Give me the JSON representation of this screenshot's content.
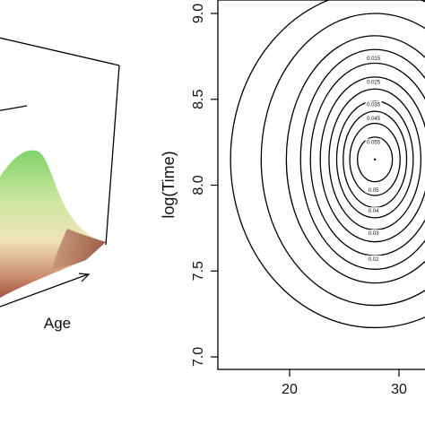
{
  "chart_data": [
    {
      "type": "surface",
      "xlabel": "Age",
      "colors": {
        "peak": "#7fd36a",
        "mid": "#e9e3a0",
        "base": "#a0523b",
        "edge": "#000000"
      }
    },
    {
      "type": "contour",
      "xlabel": "",
      "ylabel": "log(Time)",
      "xlim": [
        13,
        34
      ],
      "ylim": [
        6.88,
        9.05
      ],
      "x_ticks": [
        "20",
        "30"
      ],
      "y_ticks": [
        "7.0",
        "7.5",
        "8.0",
        "8.5",
        "9.0"
      ],
      "x_tick_values": [
        20,
        30
      ],
      "y_tick_values": [
        7.0,
        7.5,
        8.0,
        8.5,
        9.0
      ],
      "peak": {
        "x": 27.8,
        "y": 8.15
      },
      "levels": [
        {
          "label": "",
          "rx": 13.2,
          "ry": 0.98
        },
        {
          "label": "",
          "rx": 10.4,
          "ry": 0.85
        },
        {
          "label": "0.015",
          "rx": 8.1,
          "ry": 0.72
        },
        {
          "label": "0.02",
          "rx": 6.8,
          "ry": 0.64
        },
        {
          "label": "0.025",
          "rx": 5.9,
          "ry": 0.56
        },
        {
          "label": "0.03",
          "rx": 5.0,
          "ry": 0.48
        },
        {
          "label": "0.035",
          "rx": 4.2,
          "ry": 0.41
        },
        {
          "label": "0.04",
          "rx": 3.5,
          "ry": 0.34
        },
        {
          "label": "0.045",
          "rx": 2.9,
          "ry": 0.28
        },
        {
          "label": "0.05",
          "rx": 2.3,
          "ry": 0.21
        },
        {
          "label": "0.055",
          "rx": 1.6,
          "ry": 0.13
        }
      ],
      "visible_labels": [
        {
          "text": "0.015",
          "x": 28.0,
          "y": 8.74
        },
        {
          "text": "0.025",
          "x": 28.0,
          "y": 8.6
        },
        {
          "text": "0.035",
          "x": 28.0,
          "y": 8.47
        },
        {
          "text": "0.045",
          "x": 28.0,
          "y": 8.39
        },
        {
          "text": "0.055",
          "x": 28.0,
          "y": 8.25
        },
        {
          "text": "0.05",
          "x": 28.0,
          "y": 7.97
        },
        {
          "text": "0.04",
          "x": 28.0,
          "y": 7.85
        },
        {
          "text": "0.03",
          "x": 28.0,
          "y": 7.72
        },
        {
          "text": "0.02",
          "x": 28.0,
          "y": 7.57
        }
      ]
    }
  ]
}
